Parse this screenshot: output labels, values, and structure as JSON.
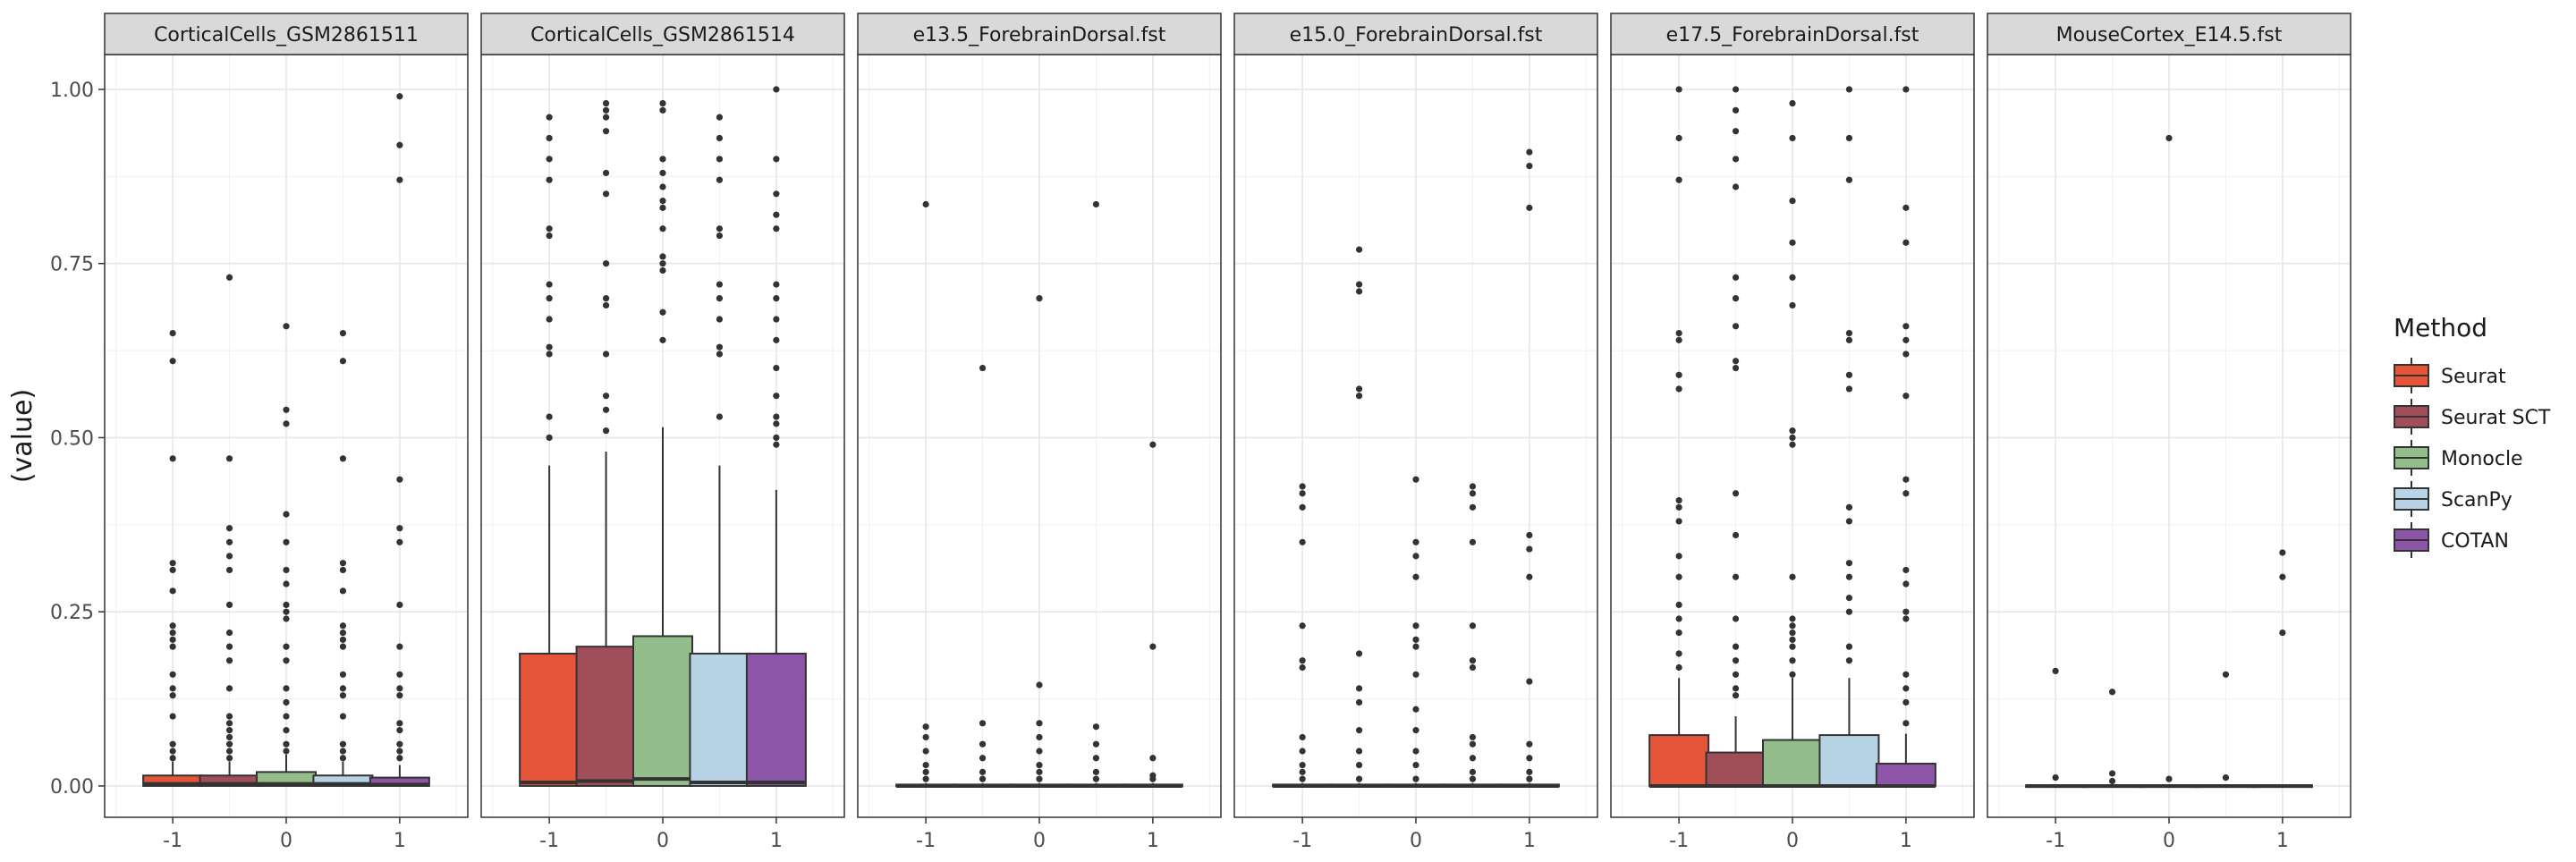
{
  "chart_data": {
    "type": "boxplot",
    "ylabel": "(value)",
    "xlabel": "",
    "ylim": [
      -0.045,
      1.05
    ],
    "xlim": [
      -1.6,
      1.6
    ],
    "y_ticks": [
      0,
      0.25,
      0.5,
      0.75,
      1
    ],
    "y_tick_labels": [
      "0.00",
      "0.25",
      "0.50",
      "0.75",
      "1.00"
    ],
    "x_ticks": [
      -1,
      0,
      1
    ],
    "x_tick_labels": [
      "-1",
      "0",
      "1"
    ],
    "grid": true,
    "legend": {
      "title": "Method",
      "position": "right",
      "entries": [
        "Seurat",
        "Seurat SCT",
        "Monocle",
        "ScanPy",
        "COTAN"
      ]
    },
    "series_colors": [
      "#e6553a",
      "#a04e5a",
      "#94bd8c",
      "#b8d2e6",
      "#8c55a8"
    ],
    "box_offsets": [
      -1,
      -0.5,
      0,
      0.5,
      1
    ],
    "panels": [
      {
        "title": "CorticalCells_GSM2861511",
        "boxes": [
          {
            "q1": 0.0,
            "median": 0.003,
            "q3": 0.015,
            "lo": 0.0,
            "hi": 0.035,
            "outliers": [
              0.04,
              0.05,
              0.06,
              0.1,
              0.13,
              0.14,
              0.16,
              0.2,
              0.21,
              0.22,
              0.23,
              0.28,
              0.31,
              0.32,
              0.47,
              0.61,
              0.65
            ]
          },
          {
            "q1": 0.0,
            "median": 0.003,
            "q3": 0.015,
            "lo": 0.0,
            "hi": 0.035,
            "outliers": [
              0.04,
              0.05,
              0.06,
              0.07,
              0.08,
              0.09,
              0.1,
              0.14,
              0.18,
              0.2,
              0.22,
              0.26,
              0.31,
              0.33,
              0.35,
              0.37,
              0.47,
              0.73
            ]
          },
          {
            "q1": 0.0,
            "median": 0.003,
            "q3": 0.02,
            "lo": 0.0,
            "hi": 0.045,
            "outliers": [
              0.05,
              0.06,
              0.08,
              0.1,
              0.12,
              0.14,
              0.18,
              0.2,
              0.24,
              0.25,
              0.26,
              0.29,
              0.31,
              0.35,
              0.39,
              0.52,
              0.54,
              0.66
            ]
          },
          {
            "q1": 0.0,
            "median": 0.003,
            "q3": 0.015,
            "lo": 0.0,
            "hi": 0.035,
            "outliers": [
              0.04,
              0.05,
              0.06,
              0.1,
              0.13,
              0.14,
              0.16,
              0.2,
              0.21,
              0.22,
              0.23,
              0.28,
              0.31,
              0.32,
              0.47,
              0.61,
              0.65
            ]
          },
          {
            "q1": 0.0,
            "median": 0.002,
            "q3": 0.012,
            "lo": 0.0,
            "hi": 0.03,
            "outliers": [
              0.04,
              0.05,
              0.06,
              0.08,
              0.09,
              0.13,
              0.14,
              0.16,
              0.2,
              0.26,
              0.35,
              0.37,
              0.44,
              0.87,
              0.92,
              0.99
            ]
          }
        ]
      },
      {
        "title": "CorticalCells_GSM2861514",
        "boxes": [
          {
            "q1": 0.0,
            "median": 0.005,
            "q3": 0.19,
            "lo": 0.0,
            "hi": 0.46,
            "outliers": [
              0.5,
              0.53,
              0.62,
              0.63,
              0.67,
              0.7,
              0.72,
              0.79,
              0.8,
              0.87,
              0.9,
              0.93,
              0.96
            ]
          },
          {
            "q1": 0.0,
            "median": 0.007,
            "q3": 0.2,
            "lo": 0.0,
            "hi": 0.48,
            "outliers": [
              0.51,
              0.54,
              0.56,
              0.62,
              0.69,
              0.7,
              0.75,
              0.85,
              0.88,
              0.94,
              0.96,
              0.97,
              0.98
            ]
          },
          {
            "q1": 0.0,
            "median": 0.01,
            "q3": 0.215,
            "lo": 0.0,
            "hi": 0.515,
            "outliers": [
              0.64,
              0.68,
              0.74,
              0.75,
              0.76,
              0.8,
              0.83,
              0.84,
              0.86,
              0.88,
              0.9,
              0.97,
              0.98
            ]
          },
          {
            "q1": 0.0,
            "median": 0.005,
            "q3": 0.19,
            "lo": 0.0,
            "hi": 0.46,
            "outliers": [
              0.53,
              0.62,
              0.63,
              0.67,
              0.7,
              0.72,
              0.79,
              0.8,
              0.87,
              0.9,
              0.93,
              0.96
            ]
          },
          {
            "q1": 0.0,
            "median": 0.005,
            "q3": 0.19,
            "lo": 0.0,
            "hi": 0.425,
            "outliers": [
              0.49,
              0.5,
              0.52,
              0.53,
              0.56,
              0.6,
              0.64,
              0.67,
              0.7,
              0.72,
              0.8,
              0.82,
              0.85,
              0.9,
              1.0
            ]
          }
        ]
      },
      {
        "title": "e13.5_ForebrainDorsal.fst",
        "boxes": [
          {
            "q1": 0.0,
            "median": 0.0,
            "q3": 0.002,
            "lo": 0.0,
            "hi": 0.004,
            "outliers": [
              0.01,
              0.02,
              0.03,
              0.05,
              0.07,
              0.085,
              0.835
            ]
          },
          {
            "q1": 0.0,
            "median": 0.0,
            "q3": 0.002,
            "lo": 0.0,
            "hi": 0.004,
            "outliers": [
              0.01,
              0.02,
              0.04,
              0.06,
              0.09,
              0.6
            ]
          },
          {
            "q1": 0.0,
            "median": 0.0,
            "q3": 0.002,
            "lo": 0.0,
            "hi": 0.004,
            "outliers": [
              0.01,
              0.02,
              0.03,
              0.05,
              0.07,
              0.09,
              0.145,
              0.7
            ]
          },
          {
            "q1": 0.0,
            "median": 0.0,
            "q3": 0.002,
            "lo": 0.0,
            "hi": 0.004,
            "outliers": [
              0.01,
              0.02,
              0.04,
              0.06,
              0.085,
              0.835
            ]
          },
          {
            "q1": 0.0,
            "median": 0.0,
            "q3": 0.002,
            "lo": 0.0,
            "hi": 0.004,
            "outliers": [
              0.01,
              0.015,
              0.04,
              0.2,
              0.49
            ]
          }
        ]
      },
      {
        "title": "e15.0_ForebrainDorsal.fst",
        "boxes": [
          {
            "q1": 0.0,
            "median": 0.0,
            "q3": 0.002,
            "lo": 0.0,
            "hi": 0.004,
            "outliers": [
              0.01,
              0.02,
              0.03,
              0.05,
              0.07,
              0.17,
              0.18,
              0.23,
              0.35,
              0.4,
              0.42,
              0.43
            ]
          },
          {
            "q1": 0.0,
            "median": 0.0,
            "q3": 0.002,
            "lo": 0.0,
            "hi": 0.004,
            "outliers": [
              0.01,
              0.03,
              0.05,
              0.08,
              0.12,
              0.14,
              0.19,
              0.56,
              0.57,
              0.71,
              0.72,
              0.77
            ]
          },
          {
            "q1": 0.0,
            "median": 0.0,
            "q3": 0.002,
            "lo": 0.0,
            "hi": 0.004,
            "outliers": [
              0.01,
              0.03,
              0.05,
              0.08,
              0.11,
              0.16,
              0.2,
              0.21,
              0.23,
              0.3,
              0.33,
              0.35,
              0.44
            ]
          },
          {
            "q1": 0.0,
            "median": 0.0,
            "q3": 0.002,
            "lo": 0.0,
            "hi": 0.004,
            "outliers": [
              0.01,
              0.02,
              0.04,
              0.06,
              0.07,
              0.17,
              0.18,
              0.23,
              0.35,
              0.4,
              0.42,
              0.43
            ]
          },
          {
            "q1": 0.0,
            "median": 0.0,
            "q3": 0.002,
            "lo": 0.0,
            "hi": 0.004,
            "outliers": [
              0.01,
              0.02,
              0.04,
              0.06,
              0.15,
              0.3,
              0.34,
              0.36,
              0.83,
              0.89,
              0.91
            ]
          }
        ]
      },
      {
        "title": "e17.5_ForebrainDorsal.fst",
        "boxes": [
          {
            "q1": 0.0,
            "median": 0.0,
            "q3": 0.073,
            "lo": 0.0,
            "hi": 0.155,
            "outliers": [
              0.17,
              0.19,
              0.22,
              0.24,
              0.26,
              0.3,
              0.33,
              0.38,
              0.4,
              0.41,
              0.57,
              0.59,
              0.64,
              0.65,
              0.87,
              0.93,
              1.0
            ]
          },
          {
            "q1": 0.0,
            "median": 0.0,
            "q3": 0.048,
            "lo": 0.0,
            "hi": 0.1,
            "outliers": [
              0.13,
              0.14,
              0.16,
              0.18,
              0.2,
              0.24,
              0.3,
              0.36,
              0.42,
              0.6,
              0.61,
              0.66,
              0.7,
              0.73,
              0.86,
              0.9,
              0.94,
              0.97,
              1.0
            ]
          },
          {
            "q1": 0.0,
            "median": 0.0,
            "q3": 0.066,
            "lo": 0.0,
            "hi": 0.155,
            "outliers": [
              0.16,
              0.18,
              0.2,
              0.21,
              0.22,
              0.23,
              0.24,
              0.3,
              0.49,
              0.5,
              0.51,
              0.69,
              0.73,
              0.78,
              0.84,
              0.93,
              0.98
            ]
          },
          {
            "q1": 0.0,
            "median": 0.0,
            "q3": 0.073,
            "lo": 0.0,
            "hi": 0.155,
            "outliers": [
              0.18,
              0.2,
              0.25,
              0.27,
              0.3,
              0.32,
              0.38,
              0.4,
              0.57,
              0.59,
              0.64,
              0.65,
              0.87,
              0.93,
              1.0
            ]
          },
          {
            "q1": 0.0,
            "median": 0.0,
            "q3": 0.032,
            "lo": 0.0,
            "hi": 0.075,
            "outliers": [
              0.09,
              0.12,
              0.14,
              0.16,
              0.24,
              0.25,
              0.29,
              0.31,
              0.42,
              0.44,
              0.56,
              0.62,
              0.64,
              0.66,
              0.78,
              0.83,
              1.0
            ]
          }
        ]
      },
      {
        "title": "MouseCortex_E14.5.fst",
        "boxes": [
          {
            "q1": 0.0,
            "median": 0.0,
            "q3": 0.001,
            "lo": 0.0,
            "hi": 0.002,
            "outliers": [
              0.012,
              0.165
            ]
          },
          {
            "q1": 0.0,
            "median": 0.0,
            "q3": 0.001,
            "lo": 0.0,
            "hi": 0.002,
            "outliers": [
              0.007,
              0.018,
              0.135
            ]
          },
          {
            "q1": 0.0,
            "median": 0.0,
            "q3": 0.001,
            "lo": 0.0,
            "hi": 0.002,
            "outliers": [
              0.01,
              0.93
            ]
          },
          {
            "q1": 0.0,
            "median": 0.0,
            "q3": 0.001,
            "lo": 0.0,
            "hi": 0.002,
            "outliers": [
              0.012,
              0.16
            ]
          },
          {
            "q1": 0.0,
            "median": 0.0,
            "q3": 0.001,
            "lo": 0.0,
            "hi": 0.002,
            "outliers": [
              0.22,
              0.3,
              0.335
            ]
          }
        ]
      }
    ]
  }
}
